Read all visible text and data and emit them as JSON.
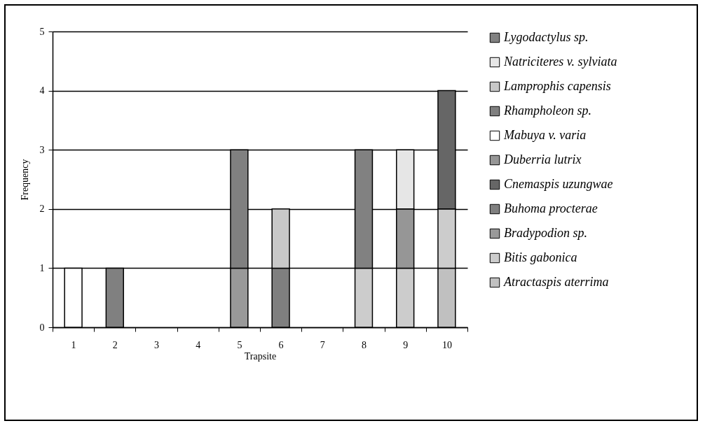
{
  "chart_data": {
    "type": "bar",
    "stacked": true,
    "xlabel": "Trapsite",
    "ylabel": "Frequency",
    "categories": [
      "1",
      "2",
      "3",
      "4",
      "5",
      "6",
      "7",
      "8",
      "9",
      "10"
    ],
    "ylim": [
      0,
      5
    ],
    "yticks": [
      0,
      1,
      2,
      3,
      4,
      5
    ],
    "grid": "y",
    "legend": "right",
    "series": [
      {
        "name": "Atractaspis aterrima",
        "color": "#c0c0c0",
        "values": [
          0,
          0,
          0,
          0,
          0,
          0,
          0,
          0,
          0,
          1
        ]
      },
      {
        "name": "Bitis gabonica",
        "color": "#cccccc",
        "values": [
          0,
          0,
          0,
          0,
          0,
          0,
          0,
          1,
          1,
          1
        ]
      },
      {
        "name": "Bradypodion sp.",
        "color": "#999999",
        "values": [
          0,
          0,
          0,
          0,
          1,
          0,
          0,
          0,
          0,
          0
        ]
      },
      {
        "name": "Buhoma procterae",
        "color": "#808080",
        "values": [
          0,
          1,
          0,
          0,
          2,
          0,
          0,
          0,
          0,
          0
        ]
      },
      {
        "name": "Cnemaspis uzungwae",
        "color": "#666666",
        "values": [
          0,
          0,
          0,
          0,
          0,
          0,
          0,
          0,
          0,
          2
        ]
      },
      {
        "name": "Duberria lutrix",
        "color": "#969696",
        "values": [
          0,
          0,
          0,
          0,
          0,
          0,
          0,
          0,
          1,
          0
        ]
      },
      {
        "name": "Mabuya v. varia",
        "color": "#ffffff",
        "values": [
          1,
          0,
          0,
          0,
          0,
          0,
          0,
          0,
          0,
          0
        ]
      },
      {
        "name": "Rhampholeon sp.",
        "color": "#7f7f7f",
        "values": [
          0,
          0,
          0,
          0,
          0,
          1,
          0,
          0,
          0,
          0
        ]
      },
      {
        "name": "Lamprophis capensis",
        "color": "#c8c8c8",
        "values": [
          0,
          0,
          0,
          0,
          0,
          1,
          0,
          0,
          0,
          0
        ]
      },
      {
        "name": "Natriciteres v. sylviata",
        "color": "#e6e6e6",
        "values": [
          0,
          0,
          0,
          0,
          0,
          0,
          0,
          0,
          1,
          0
        ]
      },
      {
        "name": "Lygodactylus sp.",
        "color": "#818181",
        "values": [
          0,
          0,
          0,
          0,
          0,
          0,
          0,
          2,
          0,
          0
        ]
      }
    ]
  }
}
